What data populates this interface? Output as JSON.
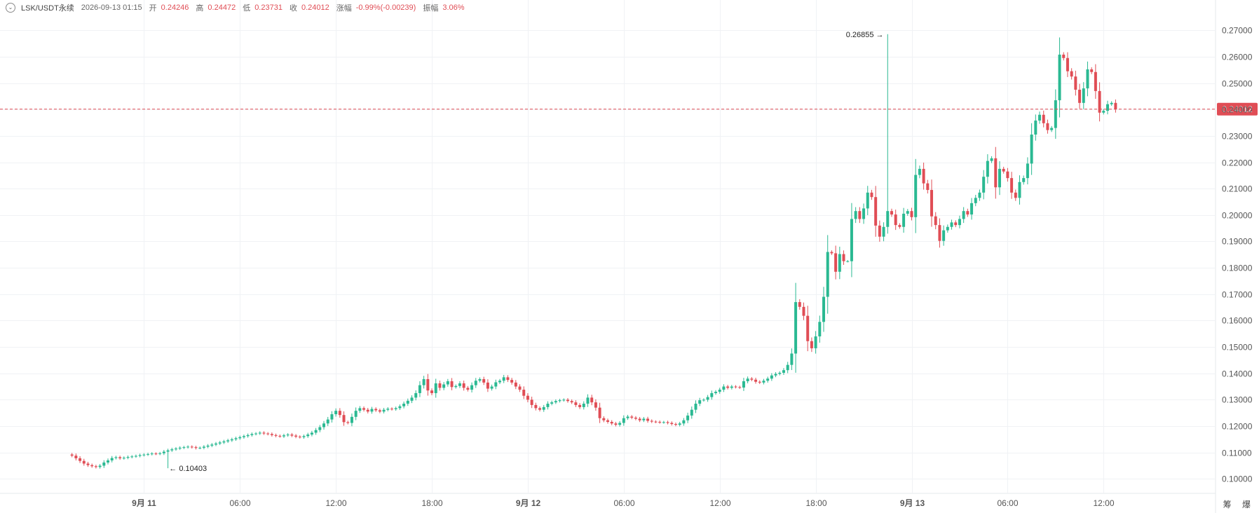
{
  "header": {
    "symbol": "LSK/USDT永续",
    "datetime": "2026-09-13 01:15",
    "open_label": "开",
    "open": "0.24246",
    "high_label": "高",
    "high": "0.24472",
    "low_label": "低",
    "low": "0.23731",
    "close_label": "收",
    "close": "0.24012",
    "change_label": "涨幅",
    "change": "-0.99%(-0.00239)",
    "amplitude_label": "振幅",
    "amplitude": "3.06%"
  },
  "corner_label": "筹 爆",
  "colors": {
    "up": "#2ab992",
    "down": "#e04d55",
    "grid": "#f0f2f5",
    "axis_text": "#555555",
    "price_line": "#e04d55"
  },
  "chart_data": {
    "type": "candlestick",
    "interval_minutes": 15,
    "y_ticks": [
      0.1,
      0.11,
      0.12,
      0.13,
      0.14,
      0.15,
      0.16,
      0.17,
      0.18,
      0.19,
      0.2,
      0.21,
      0.22,
      0.23,
      0.24,
      0.25,
      0.26,
      0.27
    ],
    "ylim": [
      0.0945,
      0.2815
    ],
    "x_range_hours": [
      -9.0,
      67.0
    ],
    "x_ticks": [
      {
        "h": 0,
        "label": "9月 11",
        "bold": true
      },
      {
        "h": 6,
        "label": "06:00",
        "bold": false
      },
      {
        "h": 12,
        "label": "12:00",
        "bold": false
      },
      {
        "h": 18,
        "label": "18:00",
        "bold": false
      },
      {
        "h": 24,
        "label": "9月 12",
        "bold": true
      },
      {
        "h": 30,
        "label": "06:00",
        "bold": false
      },
      {
        "h": 36,
        "label": "12:00",
        "bold": false
      },
      {
        "h": 42,
        "label": "18:00",
        "bold": false
      },
      {
        "h": 48,
        "label": "9月 13",
        "bold": true
      },
      {
        "h": 54,
        "label": "06:00",
        "bold": false
      },
      {
        "h": 60,
        "label": "12:00",
        "bold": false
      }
    ],
    "last_price": "0.24012",
    "last_price_value": 0.24012,
    "max_marker": {
      "label": "0.26855",
      "h": 46.6,
      "value": 0.26855
    },
    "min_marker": {
      "label": "0.10403",
      "h": 1.4,
      "value": 0.10403
    },
    "start_hour": -4.5,
    "closes": [
      0.1088,
      0.1078,
      0.1068,
      0.1058,
      0.1052,
      0.1048,
      0.1045,
      0.105,
      0.1062,
      0.107,
      0.1079,
      0.1082,
      0.1078,
      0.108,
      0.1083,
      0.1085,
      0.1087,
      0.109,
      0.1092,
      0.1094,
      0.1096,
      0.1095,
      0.1097,
      0.1103,
      0.1108,
      0.1112,
      0.1115,
      0.1118,
      0.112,
      0.1122,
      0.112,
      0.1117,
      0.1118,
      0.1122,
      0.1126,
      0.113,
      0.1134,
      0.1138,
      0.1142,
      0.1146,
      0.115,
      0.1154,
      0.1158,
      0.1162,
      0.1166,
      0.117,
      0.1172,
      0.1175,
      0.1172,
      0.117,
      0.1166,
      0.1163,
      0.1161,
      0.1165,
      0.1168,
      0.1164,
      0.116,
      0.1158,
      0.1162,
      0.1168,
      0.1175,
      0.1185,
      0.1196,
      0.121,
      0.1225,
      0.1245,
      0.1258,
      0.1242,
      0.1215,
      0.1212,
      0.1235,
      0.1258,
      0.1268,
      0.1262,
      0.1255,
      0.1265,
      0.126,
      0.1255,
      0.1262,
      0.1266,
      0.1264,
      0.1268,
      0.1275,
      0.1285,
      0.1296,
      0.1308,
      0.1325,
      0.1355,
      0.1378,
      0.1335,
      0.1325,
      0.1362,
      0.1345,
      0.1358,
      0.137,
      0.1348,
      0.1352,
      0.1362,
      0.1345,
      0.1338,
      0.1355,
      0.1372,
      0.1378,
      0.1365,
      0.1342,
      0.135,
      0.1366,
      0.1372,
      0.1385,
      0.1375,
      0.1365,
      0.135,
      0.1338,
      0.1315,
      0.13,
      0.128,
      0.1268,
      0.1262,
      0.1272,
      0.1285,
      0.129,
      0.1295,
      0.1298,
      0.13,
      0.1295,
      0.129,
      0.128,
      0.1272,
      0.1285,
      0.1308,
      0.129,
      0.127,
      0.123,
      0.1222,
      0.1216,
      0.121,
      0.1205,
      0.1212,
      0.123,
      0.1236,
      0.1232,
      0.1228,
      0.1222,
      0.1228,
      0.122,
      0.1217,
      0.1216,
      0.1214,
      0.1215,
      0.1212,
      0.1208,
      0.1205,
      0.121,
      0.1222,
      0.124,
      0.1262,
      0.1285,
      0.1298,
      0.13,
      0.131,
      0.1325,
      0.133,
      0.1338,
      0.135,
      0.1345,
      0.135,
      0.1348,
      0.1346,
      0.137,
      0.138,
      0.1376,
      0.1368,
      0.1365,
      0.1372,
      0.138,
      0.1392,
      0.1398,
      0.1402,
      0.1412,
      0.1432,
      0.1475,
      0.167,
      0.1652,
      0.1618,
      0.1522,
      0.1495,
      0.154,
      0.1595,
      0.169,
      0.186,
      0.1855,
      0.1785,
      0.1852,
      0.1825,
      0.1825,
      0.1985,
      0.2015,
      0.1985,
      0.2025,
      0.2085,
      0.2068,
      0.196,
      0.1918,
      0.1955,
      0.2015,
      0.2002,
      0.1962,
      0.1955,
      0.2005,
      0.2015,
      0.1992,
      0.2152,
      0.2175,
      0.212,
      0.2095,
      0.1995,
      0.1962,
      0.1902,
      0.1942,
      0.1955,
      0.1972,
      0.1962,
      0.1985,
      0.2015,
      0.2002,
      0.2045,
      0.2065,
      0.2085,
      0.2145,
      0.2205,
      0.2215,
      0.2105,
      0.2175,
      0.2165,
      0.214,
      0.2085,
      0.2065,
      0.2125,
      0.214,
      0.2195,
      0.2305,
      0.2358,
      0.238,
      0.2348,
      0.2322,
      0.233,
      0.2435,
      0.2608,
      0.2595,
      0.2545,
      0.2525,
      0.2475,
      0.2425,
      0.248,
      0.2552,
      0.2542,
      0.247,
      0.2388,
      0.2395,
      0.242,
      0.2425,
      0.2401
    ]
  }
}
